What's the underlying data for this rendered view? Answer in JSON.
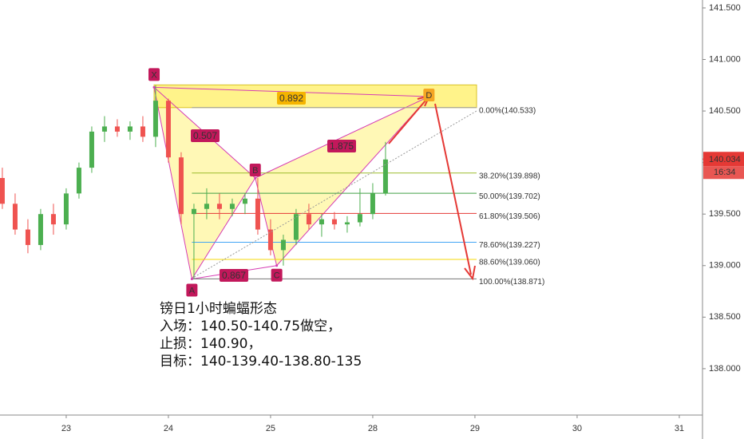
{
  "chart_data": {
    "type": "candlestick",
    "x": [
      -0.625,
      -0.5,
      -0.375,
      -0.25,
      -0.125,
      0,
      0.125,
      0.25,
      0.375,
      0.5,
      0.625,
      0.75,
      0.875,
      1.0,
      1.125,
      1.25,
      1.375,
      1.5,
      1.625,
      1.75,
      1.875,
      2.0,
      2.125,
      2.25,
      2.375,
      2.5,
      2.625,
      2.75,
      2.875,
      3.0,
      3.125
    ],
    "open": [
      139.85,
      139.6,
      139.35,
      139.2,
      139.5,
      139.4,
      139.7,
      139.95,
      140.3,
      140.35,
      140.3,
      140.35,
      140.25,
      140.6,
      140.05,
      139.5,
      139.55,
      139.6,
      139.55,
      139.6,
      139.65,
      139.35,
      139.15,
      139.25,
      139.5,
      139.4,
      139.45,
      139.4,
      139.42,
      139.5,
      139.7
    ],
    "high": [
      139.95,
      139.7,
      139.45,
      139.55,
      139.6,
      139.75,
      140.0,
      140.35,
      140.45,
      140.42,
      140.4,
      140.45,
      140.75,
      140.62,
      140.1,
      139.6,
      139.75,
      139.7,
      139.65,
      139.7,
      139.85,
      139.45,
      139.3,
      139.55,
      139.6,
      139.5,
      139.52,
      139.48,
      139.75,
      139.8,
      140.2
    ],
    "low": [
      139.55,
      139.3,
      139.12,
      139.15,
      139.3,
      139.35,
      139.65,
      139.9,
      140.2,
      140.25,
      140.22,
      140.2,
      140.15,
      140.0,
      139.4,
      138.87,
      139.45,
      139.45,
      139.48,
      139.5,
      139.3,
      139.1,
      139.0,
      139.2,
      139.35,
      139.28,
      139.35,
      139.32,
      139.38,
      139.45,
      139.68
    ],
    "close": [
      139.6,
      139.35,
      139.2,
      139.5,
      139.4,
      139.7,
      139.95,
      140.3,
      140.35,
      140.3,
      140.35,
      140.25,
      140.6,
      140.05,
      139.5,
      139.55,
      139.6,
      139.55,
      139.6,
      139.65,
      139.35,
      139.15,
      139.25,
      139.5,
      139.4,
      139.45,
      139.4,
      139.42,
      139.5,
      139.7,
      140.03
    ],
    "up_color": "#4caf50",
    "down_color": "#ef5350",
    "xlim": [
      -0.648,
      6.227
    ],
    "xticks": [
      {
        "value": 0,
        "label": "23"
      },
      {
        "value": 1,
        "label": "24"
      },
      {
        "value": 2,
        "label": "25"
      },
      {
        "value": 3,
        "label": "28"
      },
      {
        "value": 4,
        "label": "29"
      },
      {
        "value": 5,
        "label": "30"
      },
      {
        "value": 6,
        "label": "31"
      }
    ],
    "ylim": [
      137.55,
      141.577
    ],
    "yticks": [
      {
        "value": 141.5,
        "label": "141.500"
      },
      {
        "value": 141,
        "label": "141.000"
      },
      {
        "value": 140.5,
        "label": "140.500"
      },
      {
        "value": 140,
        "label": "140.000"
      },
      {
        "value": 139.5,
        "label": "139.500"
      },
      {
        "value": 139,
        "label": "139.000"
      },
      {
        "value": 138.5,
        "label": "138.500"
      },
      {
        "value": 138,
        "label": "138.000"
      }
    ],
    "last_price": {
      "value": 140.034,
      "label": "140.034"
    },
    "countdown": "16:34",
    "pattern_points": [
      {
        "label": "X",
        "x": 0.86,
        "y": 140.73
      },
      {
        "label": "A",
        "x": 1.23,
        "y": 138.87
      },
      {
        "label": "B",
        "x": 1.85,
        "y": 139.85
      },
      {
        "label": "C",
        "x": 2.06,
        "y": 139.0
      },
      {
        "label": "D",
        "x": 3.55,
        "y": 140.64
      }
    ],
    "ratios": [
      0.892,
      0.507,
      1.875,
      0.867
    ],
    "fib_levels": [
      {
        "label": "0.00%(140.533)",
        "value": 140.533,
        "color": "#9e9e9e"
      },
      {
        "label": "38.20%(139.898)",
        "value": 139.898,
        "color": "#9bbb2a"
      },
      {
        "label": "50.00%(139.702)",
        "value": 139.702,
        "color": "#43a047"
      },
      {
        "label": "61.80%(139.506)",
        "value": 139.506,
        "color": "#e53935"
      },
      {
        "label": "78.60%(139.227)",
        "value": 139.227,
        "color": "#42a5f5"
      },
      {
        "label": "88.60%(139.060)",
        "value": 139.06,
        "color": "#f5d90a"
      },
      {
        "label": "100.00%(138.871)",
        "value": 138.871,
        "color": "#757575"
      }
    ],
    "annotation": [
      "镑日1小时蝙蝠形态",
      "入场：140.50-140.75做空，",
      "止损：140.90，",
      "目标：140-139.40-138.80-135"
    ]
  }
}
